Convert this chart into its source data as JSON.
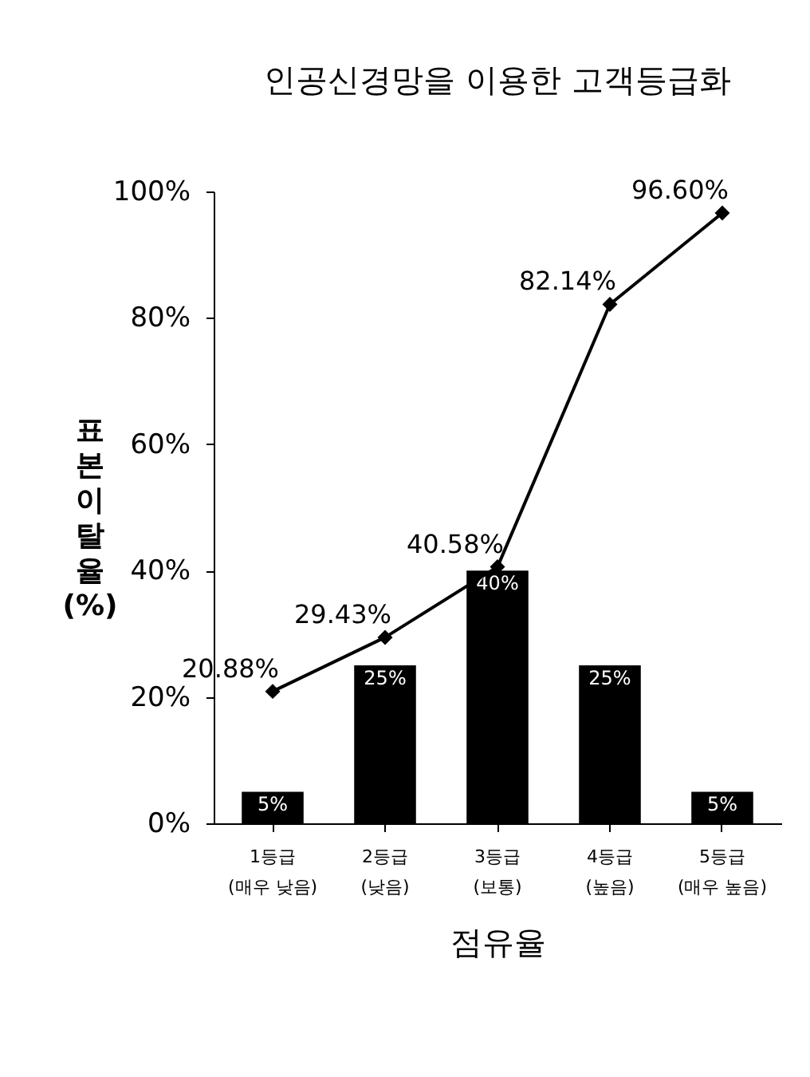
{
  "chart_data": {
    "type": "bar",
    "title": "인공신경망을 이용한 고객등급화",
    "xlabel": "점유율",
    "ylabel": "표본이탈율(%)",
    "categories": [
      "1등급 (매우 낮음)",
      "2등급 (낮음)",
      "3등급 (보통)",
      "4등급 (높음)",
      "5등급 (매우 높음)"
    ],
    "series": [
      {
        "color": "#000000",
        "values": [
          5,
          25,
          40,
          25,
          5
        ],
        "value_labels": [
          "5%",
          "25%",
          "40%",
          "25%",
          "5%"
        ]
      },
      {
        "type": "line",
        "color": "#000000",
        "values": [
          20.88,
          29.43,
          40.58,
          82.14,
          96.6
        ],
        "value_labels": [
          "20.88%",
          "29.43%",
          "40.58%",
          "82.14%",
          "96.60%"
        ]
      }
    ],
    "ylim": [
      0,
      100
    ],
    "yticks": [
      {
        "value": 0,
        "label": "0%"
      },
      {
        "value": 20,
        "label": "20%"
      },
      {
        "value": 40,
        "label": "40%"
      },
      {
        "value": 60,
        "label": "60%"
      },
      {
        "value": 80,
        "label": "80%"
      },
      {
        "value": 100,
        "label": "100%"
      }
    ],
    "grid": false,
    "marker": "diamond",
    "line_style": "solid"
  }
}
